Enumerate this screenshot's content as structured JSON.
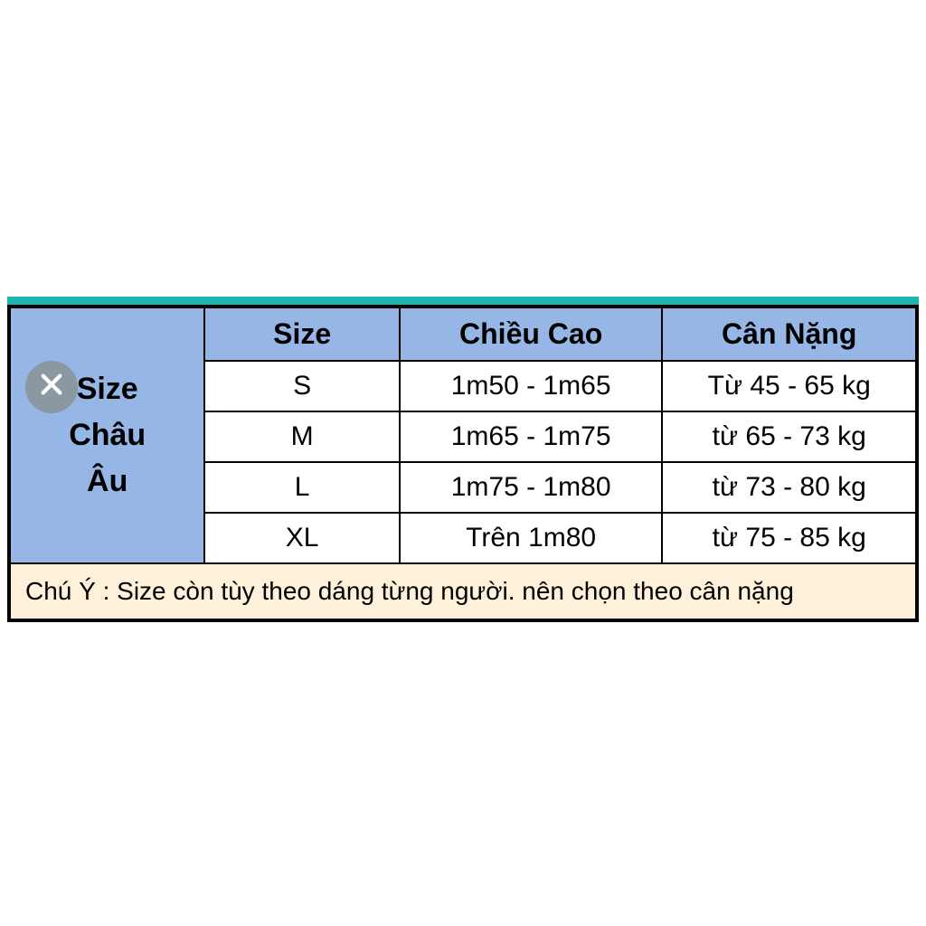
{
  "table": {
    "row_header": "Size\nChâu\nÂu",
    "columns": [
      "Size",
      "Chiều Cao",
      "Cân Nặng"
    ],
    "rows": [
      [
        "S",
        "1m50 - 1m65",
        "Từ 45 - 65 kg"
      ],
      [
        "M",
        "1m65 - 1m75",
        "từ 65 - 73 kg"
      ],
      [
        "L",
        "1m75 - 1m80",
        "từ 73 - 80 kg"
      ],
      [
        "XL",
        "Trên 1m80",
        "từ 75 - 85 kg"
      ]
    ],
    "note": "Chú Ý : Size còn tùy theo dáng từng người. nên chọn theo cân nặng",
    "colors": {
      "header_bg": "#96b6e6",
      "body_bg": "#ffffff",
      "note_bg": "#fff0da",
      "border": "#000000",
      "accent_bar": "#1db5b0",
      "close_bg": "#8b97a1"
    },
    "col_widths_pct": [
      21.5,
      21.5,
      29,
      28
    ]
  }
}
